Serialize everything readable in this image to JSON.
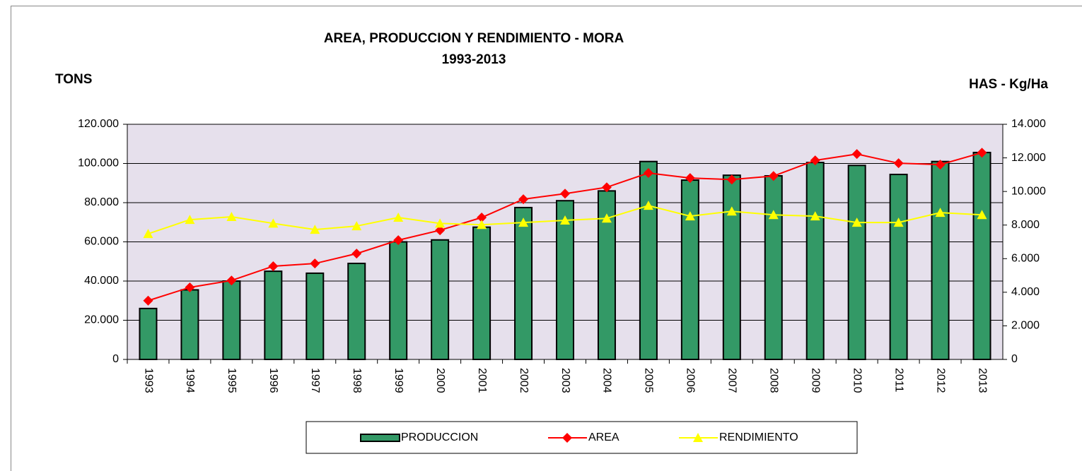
{
  "chart_data": {
    "type": "bar-line",
    "title": "AREA, PRODUCCION Y RENDIMIENTO - MORA",
    "subtitle": "1993-2013",
    "y_label": "TONS",
    "y2_label": "HAS - Kg/Ha",
    "categories": [
      "1993",
      "1994",
      "1995",
      "1996",
      "1997",
      "1998",
      "1999",
      "2000",
      "2001",
      "2002",
      "2003",
      "2004",
      "2005",
      "2006",
      "2007",
      "2008",
      "2009",
      "2010",
      "2011",
      "2012",
      "2013"
    ],
    "series": [
      {
        "name": "PRODUCCION",
        "type": "bar",
        "color": "#339966",
        "values": [
          26000,
          35500,
          40000,
          45000,
          44000,
          49000,
          60000,
          61000,
          67500,
          77500,
          81000,
          86000,
          101000,
          91500,
          94000,
          93700,
          100500,
          99000,
          94400,
          101000,
          105600
        ]
      },
      {
        "name": "AREA",
        "type": "line",
        "marker": "diamond",
        "axis": "y2",
        "color": "#ff0000",
        "values": [
          3500,
          4290,
          4700,
          5550,
          5710,
          6300,
          7100,
          7690,
          8450,
          9540,
          9870,
          10250,
          11100,
          10800,
          10710,
          10920,
          11850,
          12230,
          11680,
          11600,
          12310
        ]
      },
      {
        "name": "RENDIMIENTO",
        "type": "line",
        "marker": "triangle",
        "axis": "y2",
        "color": "#ffff00",
        "values": [
          7480,
          8320,
          8490,
          8100,
          7730,
          7940,
          8450,
          8100,
          8020,
          8150,
          8280,
          8400,
          9160,
          8530,
          8820,
          8610,
          8530,
          8150,
          8150,
          8740,
          8610
        ]
      }
    ],
    "ylim": [
      0,
      120000
    ],
    "yticks": [
      0,
      {
        "value": 20000,
        "label": "20.000"
      },
      {
        "value": 40000,
        "label": "40.000"
      },
      {
        "value": 60000,
        "label": "60.000"
      },
      {
        "value": 80000,
        "label": "80.000"
      },
      {
        "value": 100000,
        "label": "100.000"
      },
      {
        "value": 120000,
        "label": "120.000"
      }
    ],
    "y2lim": [
      0,
      14000
    ],
    "y2ticks": [
      0,
      {
        "value": 2000,
        "label": "2.000"
      },
      {
        "value": 4000,
        "label": "4.000"
      },
      {
        "value": 6000,
        "label": "6.000"
      },
      {
        "value": 8000,
        "label": "8.000"
      },
      {
        "value": 10000,
        "label": "10.000"
      },
      {
        "value": 12000,
        "label": "12.000"
      },
      {
        "value": 14000,
        "label": "14.000"
      }
    ],
    "grid": true,
    "plot_background": "#e6e0ec",
    "legend": "bottom"
  }
}
